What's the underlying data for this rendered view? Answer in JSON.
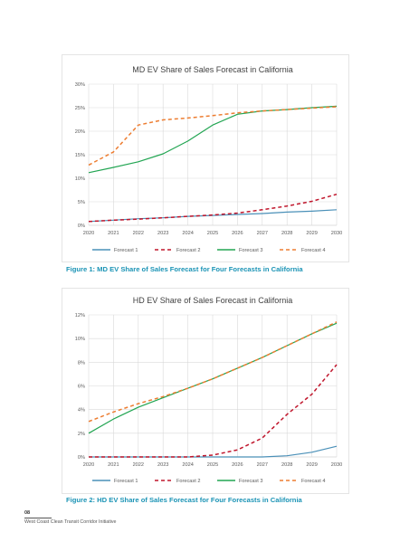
{
  "chart_data": [
    {
      "type": "line",
      "title": "MD EV Share of Sales Forecast in California",
      "x": [
        "2020",
        "2021",
        "2022",
        "2023",
        "2024",
        "2025",
        "2026",
        "2027",
        "2028",
        "2029",
        "2030"
      ],
      "ylim": [
        0,
        30
      ],
      "yticks": [
        "0%",
        "5%",
        "10%",
        "15%",
        "20%",
        "25%",
        "30%"
      ],
      "grid": true,
      "legend_position": "bottom",
      "series": [
        {
          "name": "Forecast 1",
          "color": "#4a90b8",
          "dash": "solid",
          "values": [
            0.8,
            1.1,
            1.4,
            1.6,
            1.9,
            2.1,
            2.3,
            2.5,
            2.8,
            3.0,
            3.3
          ]
        },
        {
          "name": "Forecast 2",
          "color": "#c0162c",
          "dash": "dashed",
          "values": [
            0.8,
            1.1,
            1.3,
            1.6,
            1.9,
            2.2,
            2.6,
            3.3,
            4.1,
            5.1,
            6.6
          ]
        },
        {
          "name": "Forecast 3",
          "color": "#22a552",
          "dash": "solid",
          "values": [
            11.2,
            12.3,
            13.5,
            15.2,
            17.9,
            21.3,
            23.6,
            24.3,
            24.6,
            25.0,
            25.3
          ]
        },
        {
          "name": "Forecast 4",
          "color": "#ed7d31",
          "dash": "dashed",
          "values": [
            12.8,
            15.6,
            21.3,
            22.4,
            22.8,
            23.3,
            23.9,
            24.3,
            24.6,
            24.9,
            25.2
          ]
        }
      ]
    },
    {
      "type": "line",
      "title": "HD EV Share of Sales Forecast in California",
      "x": [
        "2020",
        "2021",
        "2022",
        "2023",
        "2024",
        "2025",
        "2026",
        "2027",
        "2028",
        "2029",
        "2030"
      ],
      "ylim": [
        0,
        12
      ],
      "yticks": [
        "0%",
        "2%",
        "4%",
        "6%",
        "8%",
        "10%",
        "12%"
      ],
      "grid": true,
      "legend_position": "bottom",
      "series": [
        {
          "name": "Forecast 1",
          "color": "#4a90b8",
          "dash": "solid",
          "values": [
            0,
            0,
            0,
            0,
            0,
            0,
            0,
            0,
            0.1,
            0.4,
            0.9
          ]
        },
        {
          "name": "Forecast 2",
          "color": "#c0162c",
          "dash": "dashed",
          "values": [
            0,
            0,
            0,
            0,
            0,
            0.15,
            0.6,
            1.6,
            3.6,
            5.3,
            7.8
          ]
        },
        {
          "name": "Forecast 3",
          "color": "#22a552",
          "dash": "solid",
          "values": [
            2.0,
            3.2,
            4.2,
            5.0,
            5.8,
            6.6,
            7.5,
            8.4,
            9.4,
            10.4,
            11.3
          ]
        },
        {
          "name": "Forecast 4",
          "color": "#ed7d31",
          "dash": "dashed",
          "values": [
            3.0,
            3.8,
            4.5,
            5.1,
            5.8,
            6.6,
            7.5,
            8.4,
            9.4,
            10.4,
            11.4
          ]
        }
      ]
    }
  ],
  "captions": {
    "figure1": "Figure 1: MD EV Share of Sales Forecast for Four Forecasts in California",
    "figure2": "Figure 2: HD EV Share of Sales Forecast for Four Forecasts in California"
  },
  "footer": {
    "page_number": "08",
    "organization": "West Coast Clean Transit Corridor Initiative"
  }
}
